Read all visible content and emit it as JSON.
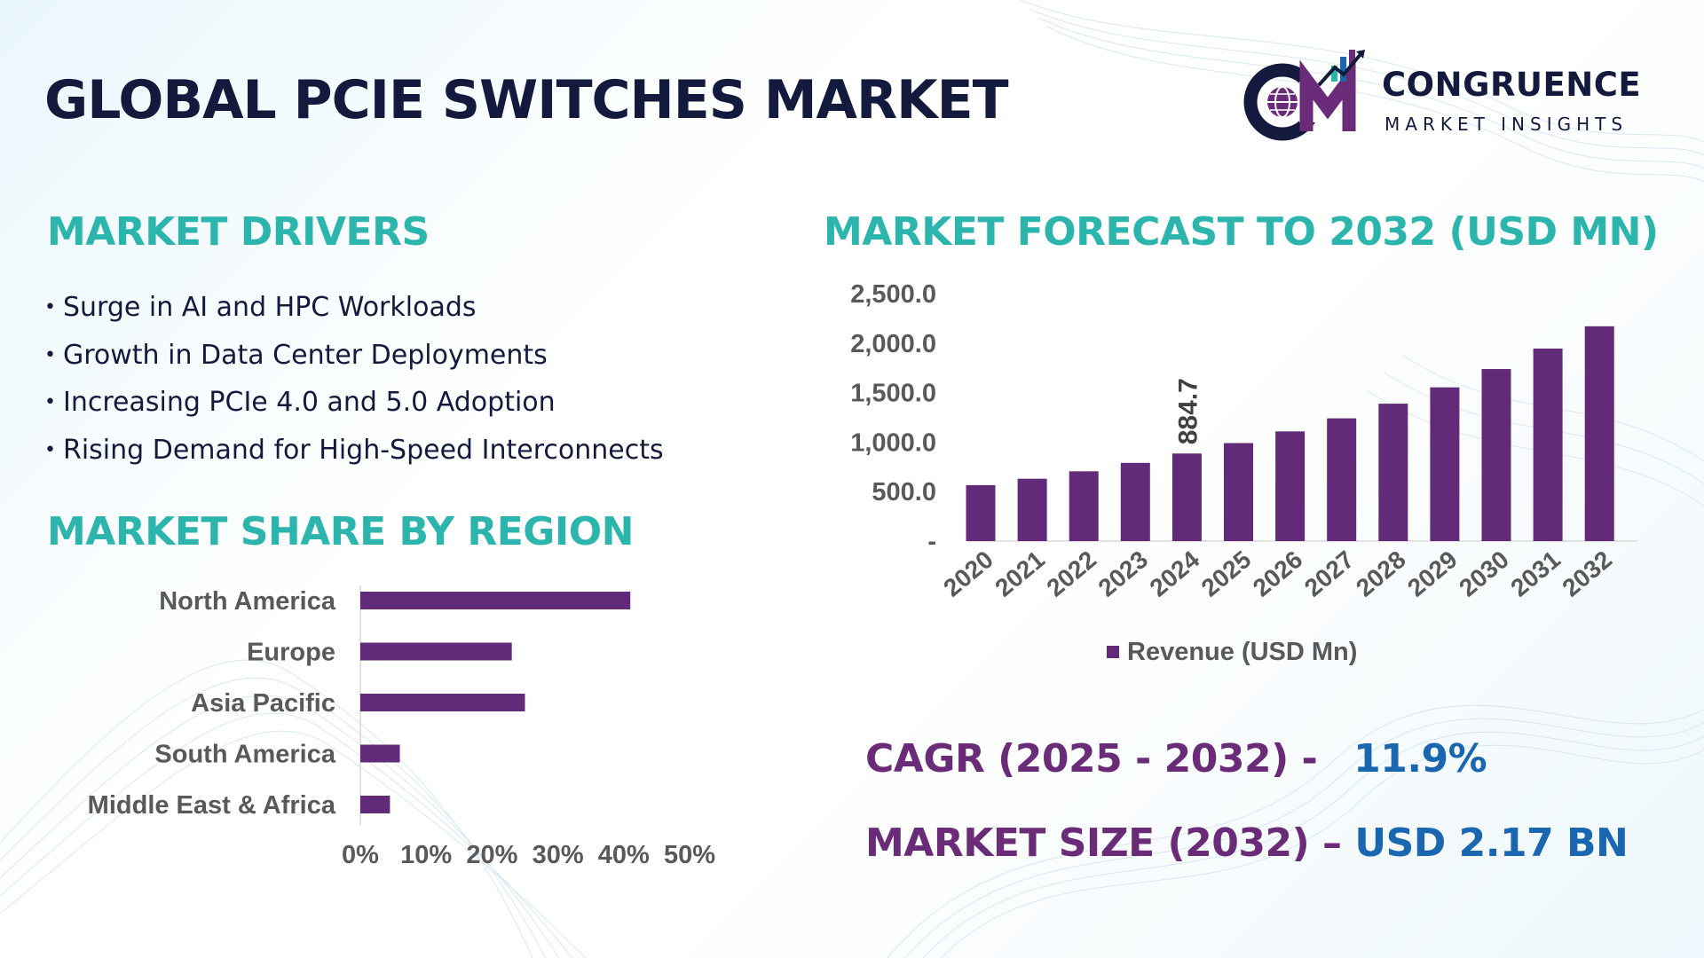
{
  "title": "GLOBAL PCIE SWITCHES MARKET",
  "logo": {
    "name": "CONGRUENCE",
    "tagline": "MARKET INSIGHTS"
  },
  "drivers": {
    "heading": "MARKET DRIVERS",
    "items": [
      "Surge in AI and HPC Workloads",
      "Growth in Data Center Deployments",
      "Increasing PCIe 4.0 and 5.0 Adoption",
      "Rising Demand for High-Speed Interconnects"
    ]
  },
  "region": {
    "heading": "MARKET SHARE BY REGION"
  },
  "forecast": {
    "heading": "MARKET FORECAST TO 2032 (USD MN)"
  },
  "stats": {
    "cagr_label": "CAGR (2025 - 2032) -",
    "cagr_value": "11.9%",
    "size_label": "MARKET SIZE (2032) –",
    "size_value": "USD 2.17 BN"
  },
  "colors": {
    "bar": "#622a78",
    "accent": "#2cb5ad",
    "title": "#141a3d",
    "stat_value": "#1a66b0"
  },
  "chart_data": [
    {
      "type": "bar",
      "orientation": "horizontal",
      "title": "MARKET SHARE BY REGION",
      "categories": [
        "North America",
        "Europe",
        "Asia Pacific",
        "South America",
        "Middle East & Africa"
      ],
      "values": [
        41,
        23,
        25,
        6,
        4.5
      ],
      "xlim": [
        0,
        50
      ],
      "xticks": [
        "0%",
        "10%",
        "20%",
        "30%",
        "40%",
        "50%"
      ],
      "xtick_values": [
        0,
        10,
        20,
        30,
        40,
        50
      ]
    },
    {
      "type": "bar",
      "title": "MARKET FORECAST TO 2032 (USD MN)",
      "categories": [
        "2020",
        "2021",
        "2022",
        "2023",
        "2024",
        "2025",
        "2026",
        "2027",
        "2028",
        "2029",
        "2030",
        "2031",
        "2032"
      ],
      "values": [
        565,
        630,
        705,
        790,
        884.7,
        990,
        1108,
        1240,
        1388,
        1553,
        1738,
        1945,
        2170
      ],
      "ylim": [
        0,
        2500
      ],
      "yticks": [
        "-",
        "500.0",
        "1,000.0",
        "1,500.0",
        "2,000.0",
        "2,500.0"
      ],
      "ytick_values": [
        0,
        500,
        1000,
        1500,
        2000,
        2500
      ],
      "annotated_index": 4,
      "annotation": "884.7",
      "legend": "Revenue (USD Mn)",
      "legend_position": "bottom"
    }
  ]
}
